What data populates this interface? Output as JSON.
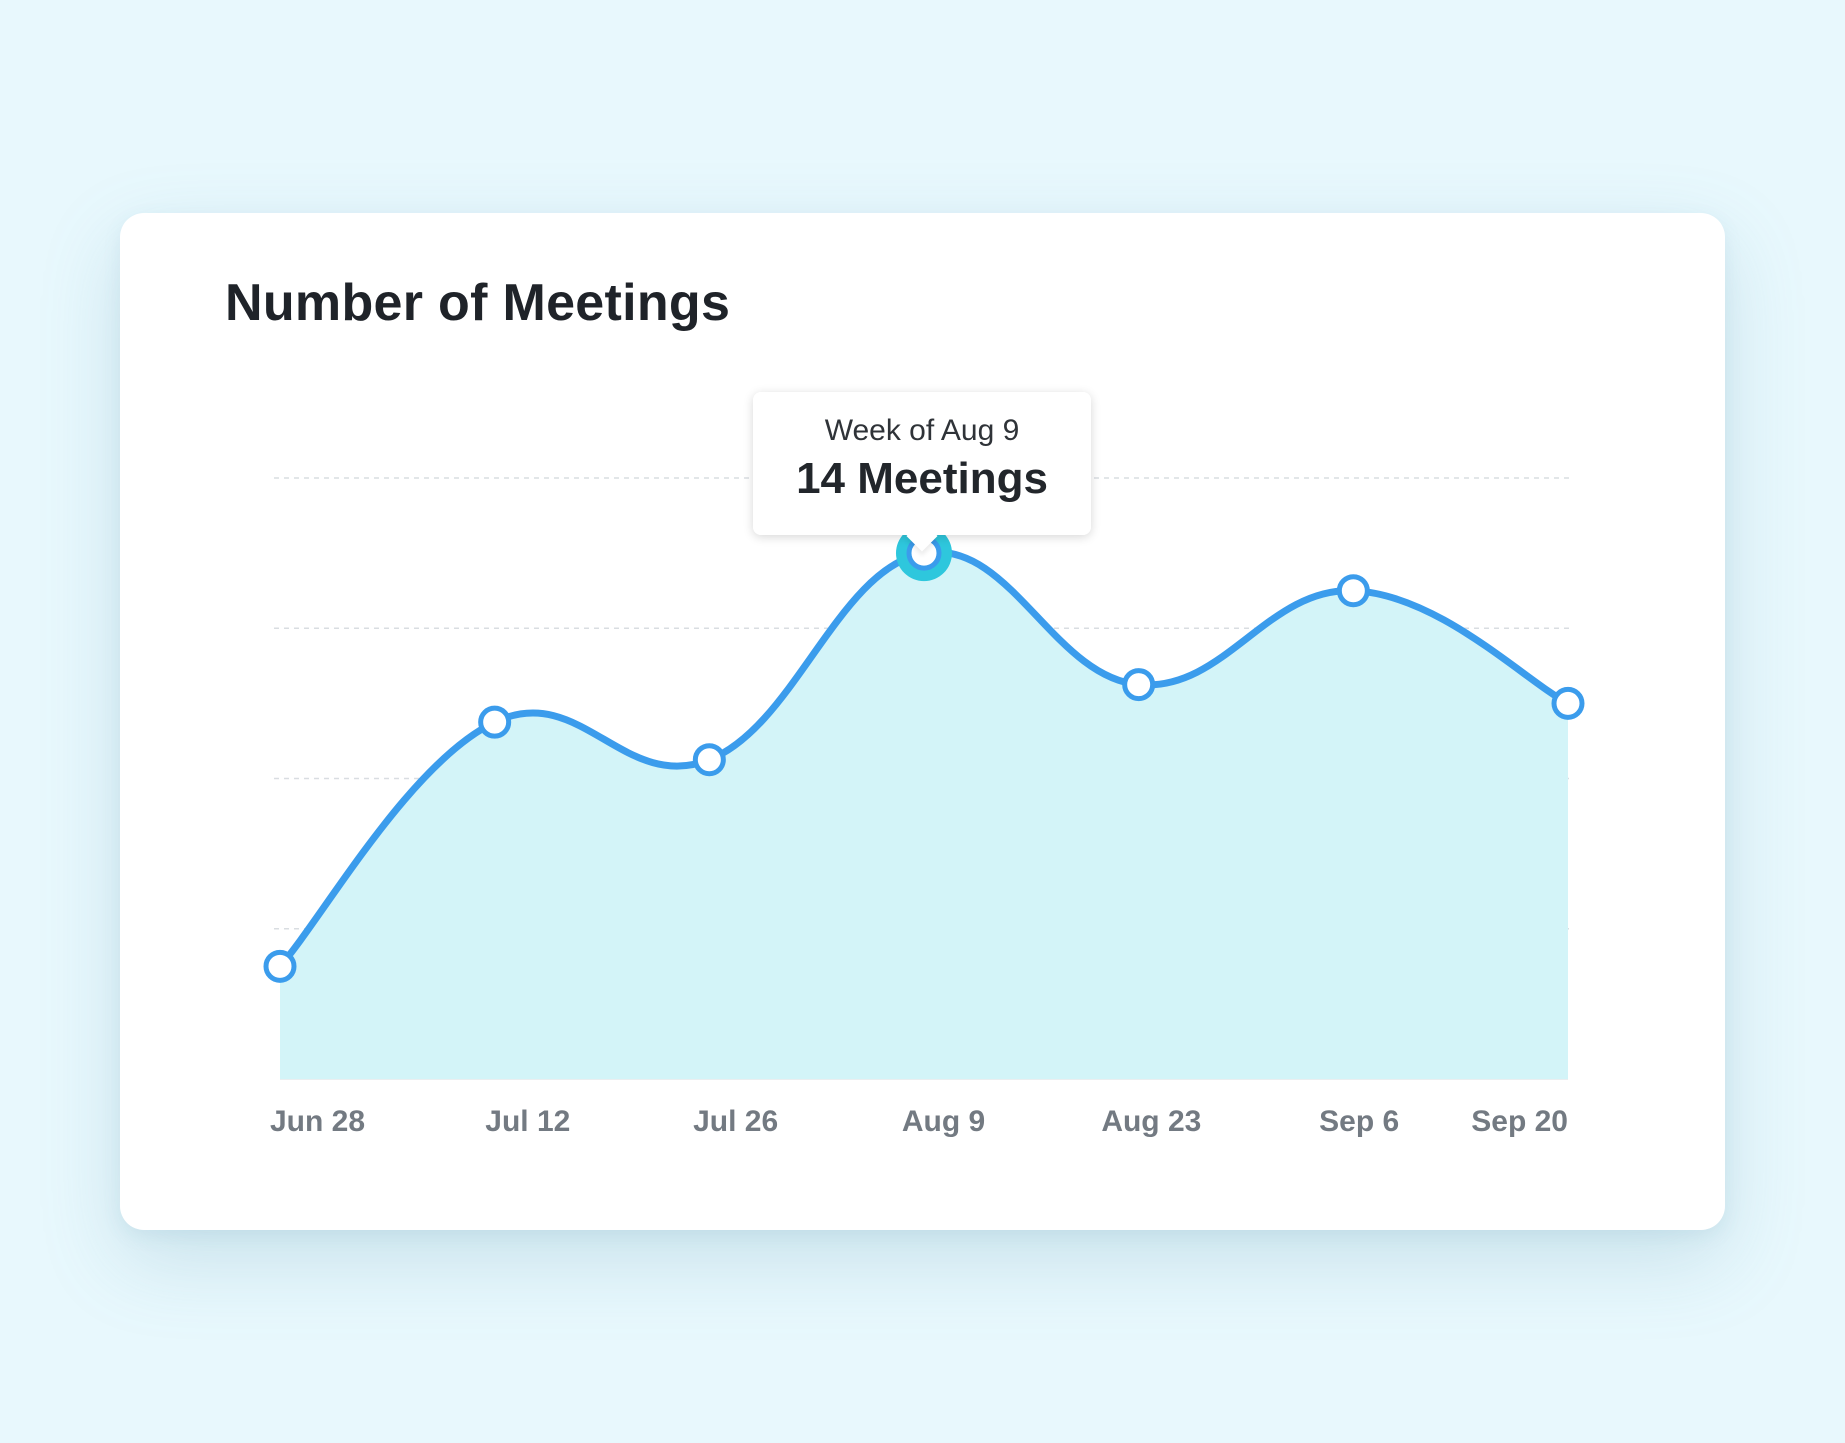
{
  "chart_data": {
    "type": "area",
    "title": "Number of Meetings",
    "xlabel": "",
    "ylabel": "",
    "x_tick_labels": [
      "Jun 28",
      "Jul 12",
      "Jul 26",
      "Aug 9",
      "Aug 23",
      "Sep 6",
      "Sep 20"
    ],
    "series": [
      {
        "x": [
          "Jun 28",
          "Jul 12",
          "Jul 26",
          "Aug 9",
          "Aug 23",
          "Sep 6",
          "Sep 20"
        ],
        "values": [
          3,
          9.5,
          8.5,
          14,
          10.5,
          13,
          10
        ]
      }
    ],
    "ylim": [
      0,
      16
    ],
    "grid": true,
    "tooltip": {
      "week_label": "Week of Aug 9",
      "value_label": "14 Meetings",
      "highlighted_index": 3
    },
    "colors": {
      "line": "#3b9cec",
      "area_fill": "#d3f4f8",
      "highlight_ring": "#2ec7dd",
      "grid": "#d9dde1",
      "tick_text": "#737a82"
    }
  }
}
